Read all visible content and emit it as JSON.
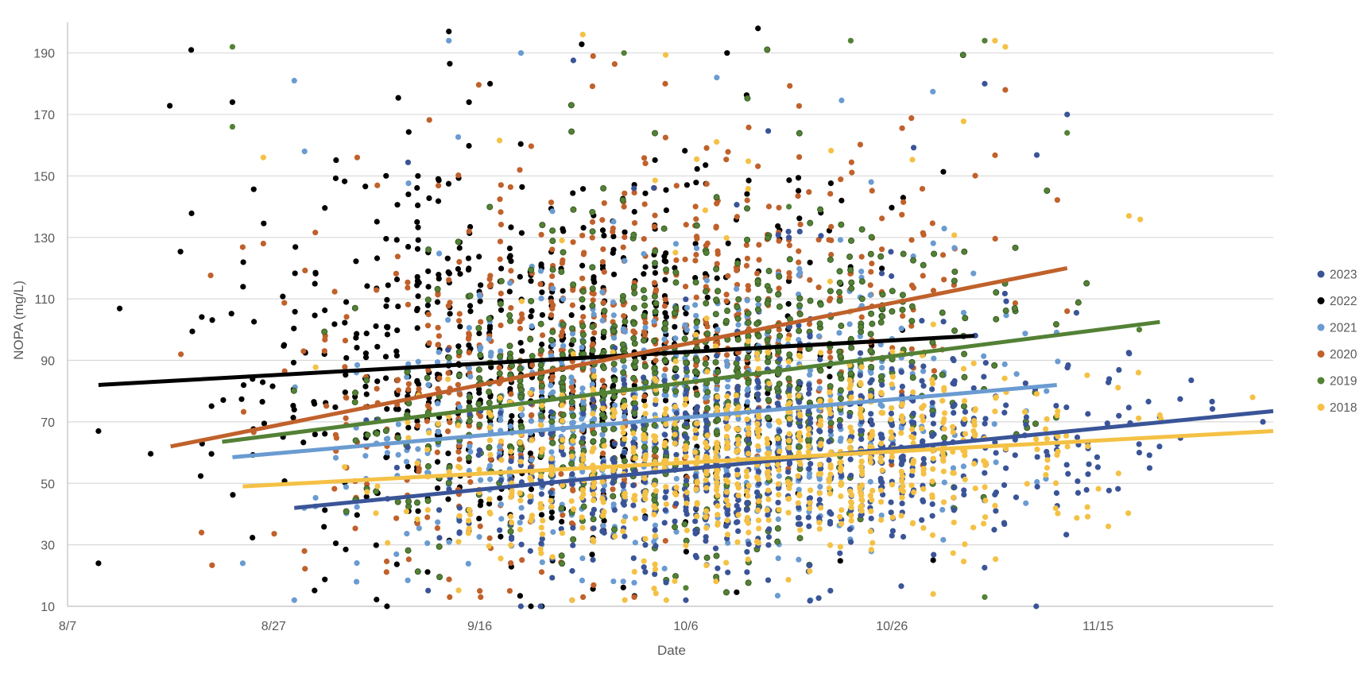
{
  "chart_data": {
    "type": "scatter",
    "title": "",
    "xlabel": "Date",
    "ylabel": "NOPA (mg/L)",
    "x_scale": "date (month/day)",
    "xlim": [
      "8/7",
      "12/2"
    ],
    "ylim": [
      10,
      200
    ],
    "x_ticks": [
      "8/7",
      "8/27",
      "9/16",
      "10/6",
      "10/26",
      "11/15"
    ],
    "y_ticks": [
      10,
      30,
      50,
      70,
      90,
      110,
      130,
      150,
      170,
      190
    ],
    "grid": "horizontal",
    "legend_position": "right",
    "series": [
      {
        "name": "2023",
        "color": "#3a5497",
        "spread": {
          "date_range": [
            "8/29",
            "12/1"
          ],
          "value_range": [
            10,
            190
          ],
          "bulk_center": 58,
          "bulk_sd": 16
        },
        "sample_points": [
          [
            "10/6",
            12
          ],
          [
            "11/9",
            10
          ],
          [
            "11/12",
            170
          ],
          [
            "11/4",
            180
          ],
          [
            "10/26",
            33
          ],
          [
            "11/19",
            60
          ],
          [
            "11/20",
            55
          ],
          [
            "12/1",
            70
          ],
          [
            "10/16",
            130
          ],
          [
            "11/1",
            90
          ]
        ],
        "trendline": {
          "start": [
            "8/29",
            42
          ],
          "end": [
            "12/2",
            73.5
          ]
        }
      },
      {
        "name": "2022",
        "color": "#000000",
        "spread": {
          "date_range": [
            "8/10",
            "11/3"
          ],
          "value_range": [
            10,
            198
          ],
          "bulk_center": 90,
          "bulk_sd": 30
        },
        "sample_points": [
          [
            "8/10",
            24
          ],
          [
            "8/10",
            67
          ],
          [
            "8/19",
            191
          ],
          [
            "8/23",
            174
          ],
          [
            "9/13",
            197
          ],
          [
            "10/13",
            198
          ],
          [
            "9/7",
            10
          ],
          [
            "10/10",
            190
          ],
          [
            "9/17",
            180
          ],
          [
            "10/30",
            25
          ],
          [
            "9/10",
            150
          ],
          [
            "9/22",
            120
          ]
        ],
        "trendline": {
          "start": [
            "8/10",
            82
          ],
          "end": [
            "11/3",
            98
          ]
        }
      },
      {
        "name": "2021",
        "color": "#6a9bd1",
        "spread": {
          "date_range": [
            "8/23",
            "11/17"
          ],
          "value_range": [
            12,
            194
          ],
          "bulk_center": 65,
          "bulk_sd": 22
        },
        "sample_points": [
          [
            "8/29",
            181
          ],
          [
            "9/13",
            194
          ],
          [
            "9/20",
            190
          ],
          [
            "10/9",
            182
          ],
          [
            "8/29",
            12
          ],
          [
            "8/24",
            24
          ],
          [
            "8/30",
            158
          ],
          [
            "11/10",
            80
          ],
          [
            "9/18",
            90
          ],
          [
            "10/2",
            60
          ]
        ],
        "trendline": {
          "start": [
            "8/23",
            58.5
          ],
          "end": [
            "11/11",
            82
          ]
        }
      },
      {
        "name": "2020",
        "color": "#c0612b",
        "spread": {
          "date_range": [
            "8/17",
            "11/12"
          ],
          "value_range": [
            13,
            189
          ],
          "bulk_center": 95,
          "bulk_sd": 28
        },
        "sample_points": [
          [
            "8/18",
            92
          ],
          [
            "8/20",
            34
          ],
          [
            "9/27",
            189
          ],
          [
            "10/4",
            180
          ],
          [
            "9/16",
            15
          ],
          [
            "11/12",
            106
          ],
          [
            "8/26",
            128
          ],
          [
            "9/30",
            140
          ],
          [
            "10/14",
            110
          ],
          [
            "11/6",
            178
          ]
        ],
        "trendline": {
          "start": [
            "8/17",
            62
          ],
          "end": [
            "11/12",
            120
          ]
        }
      },
      {
        "name": "2019",
        "color": "#538135",
        "spread": {
          "date_range": [
            "8/22",
            "11/19"
          ],
          "value_range": [
            13,
            194
          ],
          "bulk_center": 88,
          "bulk_sd": 24
        },
        "sample_points": [
          [
            "8/23",
            192
          ],
          [
            "8/23",
            166
          ],
          [
            "9/30",
            190
          ],
          [
            "10/22",
            194
          ],
          [
            "11/4",
            194
          ],
          [
            "11/19",
            100
          ],
          [
            "11/12",
            164
          ],
          [
            "11/4",
            13
          ],
          [
            "10/6",
            16
          ],
          [
            "10/16",
            140
          ]
        ],
        "trendline": {
          "start": [
            "8/22",
            63.5
          ],
          "end": [
            "11/21",
            102.5
          ]
        }
      },
      {
        "name": "2018",
        "color": "#f4c145",
        "spread": {
          "date_range": [
            "8/24",
            "11/30"
          ],
          "value_range": [
            12,
            196
          ],
          "bulk_center": 55,
          "bulk_sd": 16
        },
        "sample_points": [
          [
            "9/26",
            196
          ],
          [
            "11/5",
            194
          ],
          [
            "11/6",
            192
          ],
          [
            "8/26",
            156
          ],
          [
            "11/18",
            137
          ],
          [
            "11/30",
            78
          ],
          [
            "11/16",
            36
          ],
          [
            "10/30",
            14
          ],
          [
            "10/26",
            60
          ],
          [
            "10/16",
            45
          ]
        ],
        "trendline": {
          "start": [
            "8/24",
            49
          ],
          "end": [
            "12/2",
            67
          ]
        }
      }
    ]
  }
}
